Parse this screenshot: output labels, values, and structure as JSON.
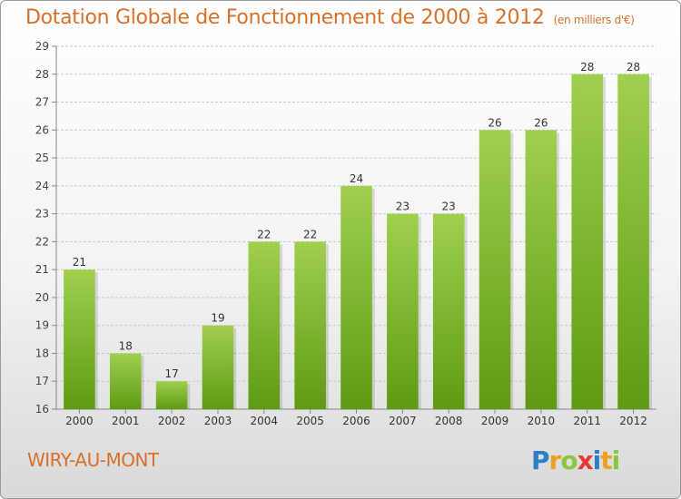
{
  "header": {
    "title": "Dotation Globale de Fonctionnement de 2000 à 2012",
    "subtitle": "(en milliers d'€)"
  },
  "footer": {
    "town": "WIRY-AU-MONT",
    "logo_text": "Proxiti",
    "logo_letters": [
      {
        "ch": "P",
        "color": "#2b7fc7"
      },
      {
        "ch": "r",
        "color": "#f0a020"
      },
      {
        "ch": "o",
        "color": "#8cc63f"
      },
      {
        "ch": "x",
        "color": "#e53935"
      },
      {
        "ch": "i",
        "color": "#2b7fc7"
      },
      {
        "ch": "t",
        "color": "#f0a020"
      },
      {
        "ch": "i",
        "color": "#8cc63f"
      }
    ]
  },
  "chart_data": {
    "type": "bar",
    "title": "Dotation Globale de Fonctionnement de 2000 à 2012",
    "subtitle": "(en milliers d'€)",
    "categories": [
      "2000",
      "2001",
      "2002",
      "2003",
      "2004",
      "2005",
      "2006",
      "2007",
      "2008",
      "2009",
      "2010",
      "2011",
      "2012"
    ],
    "values": [
      21,
      18,
      17,
      19,
      22,
      22,
      24,
      23,
      23,
      26,
      26,
      28,
      28
    ],
    "ylim": [
      16,
      29
    ],
    "yticks": [
      16,
      17,
      18,
      19,
      20,
      21,
      22,
      23,
      24,
      25,
      26,
      27,
      28,
      29
    ],
    "grid": true,
    "bar_color_top": "#9fd04e",
    "bar_color_bottom": "#5f9a12",
    "title_color": "#d9702a"
  }
}
